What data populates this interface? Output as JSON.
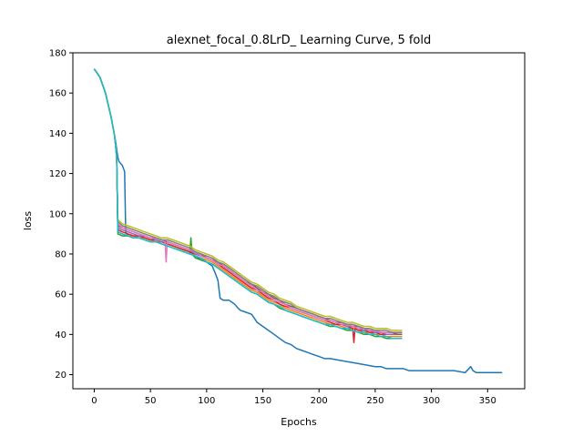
{
  "chart_data": {
    "type": "line",
    "title": "alexnet_focal_0.8LrD_ Learning Curve, 5 fold",
    "xlabel": "Epochs",
    "ylabel": "loss",
    "xlim": [
      -19,
      383
    ],
    "ylim": [
      13,
      180
    ],
    "xticks": [
      0,
      50,
      100,
      150,
      200,
      250,
      300,
      350
    ],
    "yticks": [
      20,
      40,
      60,
      80,
      100,
      120,
      140,
      160,
      180
    ],
    "grid": false,
    "legend": "none",
    "series": [
      {
        "color": "#1f77b4",
        "x": [
          0,
          5,
          10,
          15,
          19,
          20,
          21,
          22,
          25,
          27,
          28,
          30,
          35,
          40,
          45,
          50,
          55,
          60,
          65,
          70,
          75,
          80,
          85,
          90,
          95,
          100,
          105,
          108,
          110,
          112,
          115,
          120,
          125,
          128,
          130,
          135,
          140,
          145,
          150,
          155,
          160,
          165,
          170,
          175,
          180,
          185,
          190,
          195,
          200,
          205,
          210,
          220,
          230,
          240,
          250,
          255,
          260,
          270,
          275,
          280,
          290,
          300,
          310,
          320,
          330,
          335,
          337,
          340,
          345,
          350,
          355,
          360,
          363
        ],
        "y": [
          172,
          168,
          160,
          148,
          136,
          132,
          128,
          126,
          124,
          121,
          91,
          89,
          88,
          89,
          88,
          87,
          86,
          86,
          85,
          84,
          83,
          82,
          81,
          79,
          77,
          76,
          74,
          70,
          67,
          58,
          57,
          57,
          55,
          53,
          52,
          51,
          50,
          46,
          44,
          42,
          40,
          38,
          36,
          35,
          33,
          32,
          31,
          30,
          29,
          28,
          28,
          27,
          26,
          25,
          24,
          24,
          23,
          23,
          23,
          22,
          22,
          22,
          22,
          22,
          21,
          24,
          22,
          21,
          21,
          21,
          21,
          21,
          21
        ]
      },
      {
        "color": "#ff7f0e",
        "x": [
          0,
          5,
          10,
          15,
          18,
          19,
          20,
          21,
          25,
          30,
          35,
          40,
          45,
          50,
          55,
          60,
          65,
          70,
          75,
          80,
          85,
          90,
          95,
          100,
          105,
          110,
          115,
          120,
          125,
          130,
          135,
          140,
          145,
          150,
          155,
          160,
          165,
          170,
          175,
          180,
          185,
          190,
          195,
          200,
          205,
          210,
          215,
          220,
          225,
          230,
          235,
          240,
          245,
          250,
          255,
          260,
          265,
          270,
          274
        ],
        "y": [
          172,
          168,
          160,
          148,
          139,
          134,
          128,
          91,
          90,
          89,
          89,
          88,
          88,
          87,
          86,
          86,
          85,
          84,
          83,
          82,
          81,
          79,
          78,
          77,
          76,
          74,
          72,
          70,
          68,
          66,
          64,
          62,
          61,
          59,
          57,
          56,
          55,
          53,
          52,
          51,
          50,
          49,
          48,
          47,
          46,
          45,
          45,
          44,
          43,
          43,
          42,
          41,
          41,
          40,
          40,
          39,
          39,
          39,
          39
        ]
      },
      {
        "color": "#2ca02c",
        "x": [
          0,
          5,
          10,
          15,
          18,
          19,
          20,
          21,
          25,
          30,
          35,
          40,
          45,
          50,
          55,
          60,
          65,
          70,
          75,
          80,
          85,
          86,
          87,
          90,
          95,
          100,
          105,
          110,
          115,
          120,
          125,
          130,
          135,
          140,
          145,
          150,
          155,
          160,
          165,
          170,
          175,
          180,
          185,
          190,
          195,
          200,
          205,
          210,
          215,
          220,
          225,
          230,
          235,
          240,
          245,
          250,
          255,
          260,
          265,
          270,
          274
        ],
        "y": [
          172,
          168,
          160,
          148,
          139,
          134,
          128,
          90,
          89,
          89,
          88,
          88,
          87,
          86,
          86,
          85,
          84,
          83,
          82,
          81,
          80,
          88,
          80,
          78,
          77,
          76,
          75,
          73,
          71,
          69,
          67,
          65,
          63,
          61,
          60,
          58,
          56,
          55,
          53,
          52,
          51,
          50,
          49,
          48,
          47,
          46,
          45,
          44,
          44,
          43,
          42,
          42,
          41,
          40,
          40,
          39,
          39,
          38,
          38,
          38,
          38
        ]
      },
      {
        "color": "#d62728",
        "x": [
          0,
          5,
          10,
          15,
          18,
          19,
          20,
          21,
          25,
          30,
          35,
          40,
          45,
          50,
          55,
          60,
          65,
          70,
          75,
          80,
          85,
          90,
          95,
          100,
          105,
          110,
          115,
          120,
          125,
          130,
          135,
          140,
          145,
          150,
          155,
          160,
          165,
          170,
          175,
          180,
          185,
          190,
          195,
          200,
          205,
          210,
          215,
          220,
          225,
          230,
          231,
          232,
          235,
          240,
          245,
          250,
          255,
          260,
          265,
          270,
          274
        ],
        "y": [
          172,
          168,
          160,
          148,
          139,
          134,
          128,
          92,
          91,
          90,
          89,
          89,
          88,
          87,
          87,
          86,
          85,
          84,
          83,
          82,
          81,
          80,
          79,
          78,
          77,
          75,
          73,
          71,
          69,
          67,
          65,
          63,
          62,
          60,
          58,
          57,
          55,
          54,
          53,
          52,
          51,
          50,
          49,
          48,
          47,
          46,
          45,
          45,
          44,
          43,
          36,
          43,
          42,
          42,
          41,
          41,
          40,
          40,
          40,
          40,
          40
        ]
      },
      {
        "color": "#9467bd",
        "x": [
          0,
          5,
          10,
          15,
          18,
          19,
          20,
          21,
          25,
          30,
          35,
          40,
          45,
          50,
          55,
          60,
          65,
          70,
          75,
          80,
          85,
          90,
          95,
          100,
          105,
          110,
          115,
          120,
          125,
          130,
          135,
          140,
          145,
          150,
          155,
          160,
          165,
          170,
          175,
          180,
          185,
          190,
          195,
          200,
          205,
          210,
          215,
          220,
          225,
          230,
          235,
          240,
          245,
          250,
          255,
          260,
          265,
          270,
          274
        ],
        "y": [
          172,
          168,
          160,
          148,
          139,
          134,
          128,
          93,
          92,
          91,
          90,
          89,
          89,
          88,
          87,
          86,
          86,
          85,
          84,
          83,
          82,
          80,
          79,
          78,
          77,
          75,
          74,
          72,
          70,
          68,
          66,
          64,
          62,
          61,
          59,
          57,
          56,
          55,
          53,
          52,
          51,
          50,
          49,
          48,
          47,
          47,
          46,
          45,
          44,
          44,
          43,
          42,
          42,
          41,
          41,
          40,
          40,
          40,
          40
        ]
      },
      {
        "color": "#8c564b",
        "x": [
          0,
          5,
          10,
          15,
          18,
          19,
          20,
          21,
          25,
          30,
          35,
          40,
          45,
          50,
          55,
          60,
          65,
          70,
          75,
          80,
          85,
          90,
          95,
          100,
          105,
          110,
          115,
          120,
          125,
          130,
          135,
          140,
          145,
          150,
          155,
          160,
          165,
          170,
          175,
          180,
          185,
          190,
          195,
          200,
          205,
          210,
          215,
          220,
          225,
          230,
          235,
          240,
          245,
          250,
          255,
          260,
          265,
          270,
          274
        ],
        "y": [
          172,
          168,
          160,
          148,
          139,
          134,
          128,
          94,
          93,
          92,
          91,
          90,
          89,
          88,
          88,
          87,
          86,
          85,
          84,
          83,
          82,
          81,
          80,
          78,
          77,
          76,
          74,
          72,
          70,
          68,
          66,
          65,
          63,
          61,
          60,
          58,
          57,
          55,
          54,
          53,
          52,
          51,
          50,
          49,
          48,
          47,
          46,
          46,
          45,
          44,
          44,
          43,
          42,
          42,
          41,
          41,
          41,
          40,
          40
        ]
      },
      {
        "color": "#e377c2",
        "x": [
          0,
          5,
          10,
          15,
          18,
          19,
          20,
          21,
          25,
          30,
          35,
          40,
          45,
          50,
          55,
          60,
          63,
          64,
          65,
          70,
          75,
          80,
          85,
          90,
          95,
          100,
          105,
          110,
          115,
          120,
          125,
          130,
          135,
          140,
          145,
          150,
          155,
          160,
          165,
          170,
          175,
          180,
          185,
          190,
          195,
          200,
          205,
          210,
          215,
          220,
          225,
          230,
          235,
          240,
          245,
          250,
          255,
          260,
          265,
          270,
          274
        ],
        "y": [
          172,
          168,
          160,
          148,
          139,
          134,
          128,
          95,
          93,
          92,
          91,
          90,
          89,
          88,
          88,
          87,
          86,
          76,
          86,
          85,
          84,
          83,
          82,
          81,
          79,
          78,
          77,
          75,
          74,
          72,
          70,
          68,
          66,
          64,
          62,
          61,
          59,
          57,
          56,
          55,
          53,
          52,
          51,
          50,
          49,
          48,
          47,
          47,
          46,
          45,
          45,
          44,
          43,
          43,
          42,
          42,
          41,
          41,
          41,
          41,
          41
        ]
      },
      {
        "color": "#7f7f7f",
        "x": [
          0,
          5,
          10,
          15,
          18,
          19,
          20,
          21,
          25,
          30,
          35,
          40,
          45,
          50,
          55,
          60,
          65,
          70,
          75,
          80,
          85,
          90,
          95,
          100,
          105,
          110,
          115,
          120,
          125,
          130,
          135,
          140,
          145,
          150,
          155,
          160,
          165,
          170,
          175,
          180,
          185,
          190,
          195,
          200,
          205,
          210,
          215,
          220,
          225,
          230,
          235,
          240,
          245,
          250,
          255,
          260,
          265,
          270,
          274
        ],
        "y": [
          172,
          168,
          160,
          148,
          139,
          134,
          128,
          96,
          94,
          93,
          92,
          91,
          90,
          89,
          88,
          87,
          87,
          86,
          85,
          84,
          83,
          81,
          80,
          79,
          78,
          76,
          75,
          73,
          71,
          69,
          67,
          65,
          64,
          62,
          60,
          59,
          57,
          56,
          55,
          53,
          52,
          51,
          50,
          49,
          48,
          48,
          47,
          46,
          45,
          45,
          44,
          43,
          43,
          42,
          42,
          42,
          41,
          41,
          41
        ]
      },
      {
        "color": "#bcbd22",
        "x": [
          0,
          5,
          10,
          15,
          18,
          19,
          20,
          21,
          25,
          30,
          35,
          40,
          45,
          50,
          55,
          60,
          65,
          70,
          75,
          80,
          85,
          90,
          95,
          100,
          105,
          110,
          115,
          120,
          125,
          130,
          135,
          140,
          145,
          150,
          155,
          160,
          165,
          170,
          175,
          180,
          185,
          190,
          195,
          200,
          205,
          210,
          215,
          220,
          225,
          230,
          235,
          240,
          245,
          250,
          255,
          260,
          265,
          270,
          274
        ],
        "y": [
          172,
          168,
          160,
          148,
          139,
          134,
          128,
          97,
          95,
          94,
          93,
          92,
          91,
          90,
          89,
          88,
          88,
          87,
          86,
          85,
          84,
          82,
          81,
          80,
          79,
          77,
          76,
          74,
          72,
          70,
          68,
          66,
          65,
          63,
          61,
          60,
          58,
          57,
          56,
          54,
          53,
          52,
          51,
          50,
          49,
          49,
          48,
          47,
          46,
          46,
          45,
          44,
          44,
          43,
          43,
          43,
          42,
          42,
          42
        ]
      },
      {
        "color": "#17becf",
        "x": [
          0,
          5,
          10,
          15,
          18,
          19,
          20,
          21,
          25,
          30,
          35,
          40,
          45,
          50,
          55,
          60,
          65,
          70,
          75,
          80,
          85,
          90,
          95,
          100,
          105,
          110,
          115,
          120,
          125,
          130,
          135,
          140,
          145,
          150,
          155,
          160,
          165,
          170,
          175,
          180,
          185,
          190,
          195,
          200,
          205,
          210,
          215,
          220,
          225,
          230,
          235,
          240,
          245,
          250,
          255,
          260,
          265,
          270,
          274
        ],
        "y": [
          172,
          168,
          160,
          148,
          139,
          134,
          128,
          91,
          90,
          89,
          88,
          88,
          87,
          86,
          86,
          85,
          84,
          83,
          82,
          81,
          80,
          79,
          78,
          76,
          75,
          73,
          71,
          69,
          67,
          65,
          63,
          61,
          60,
          58,
          56,
          55,
          54,
          52,
          51,
          50,
          49,
          48,
          47,
          46,
          45,
          45,
          44,
          43,
          43,
          42,
          41,
          41,
          40,
          40,
          39,
          39,
          38,
          38,
          38
        ]
      }
    ]
  }
}
